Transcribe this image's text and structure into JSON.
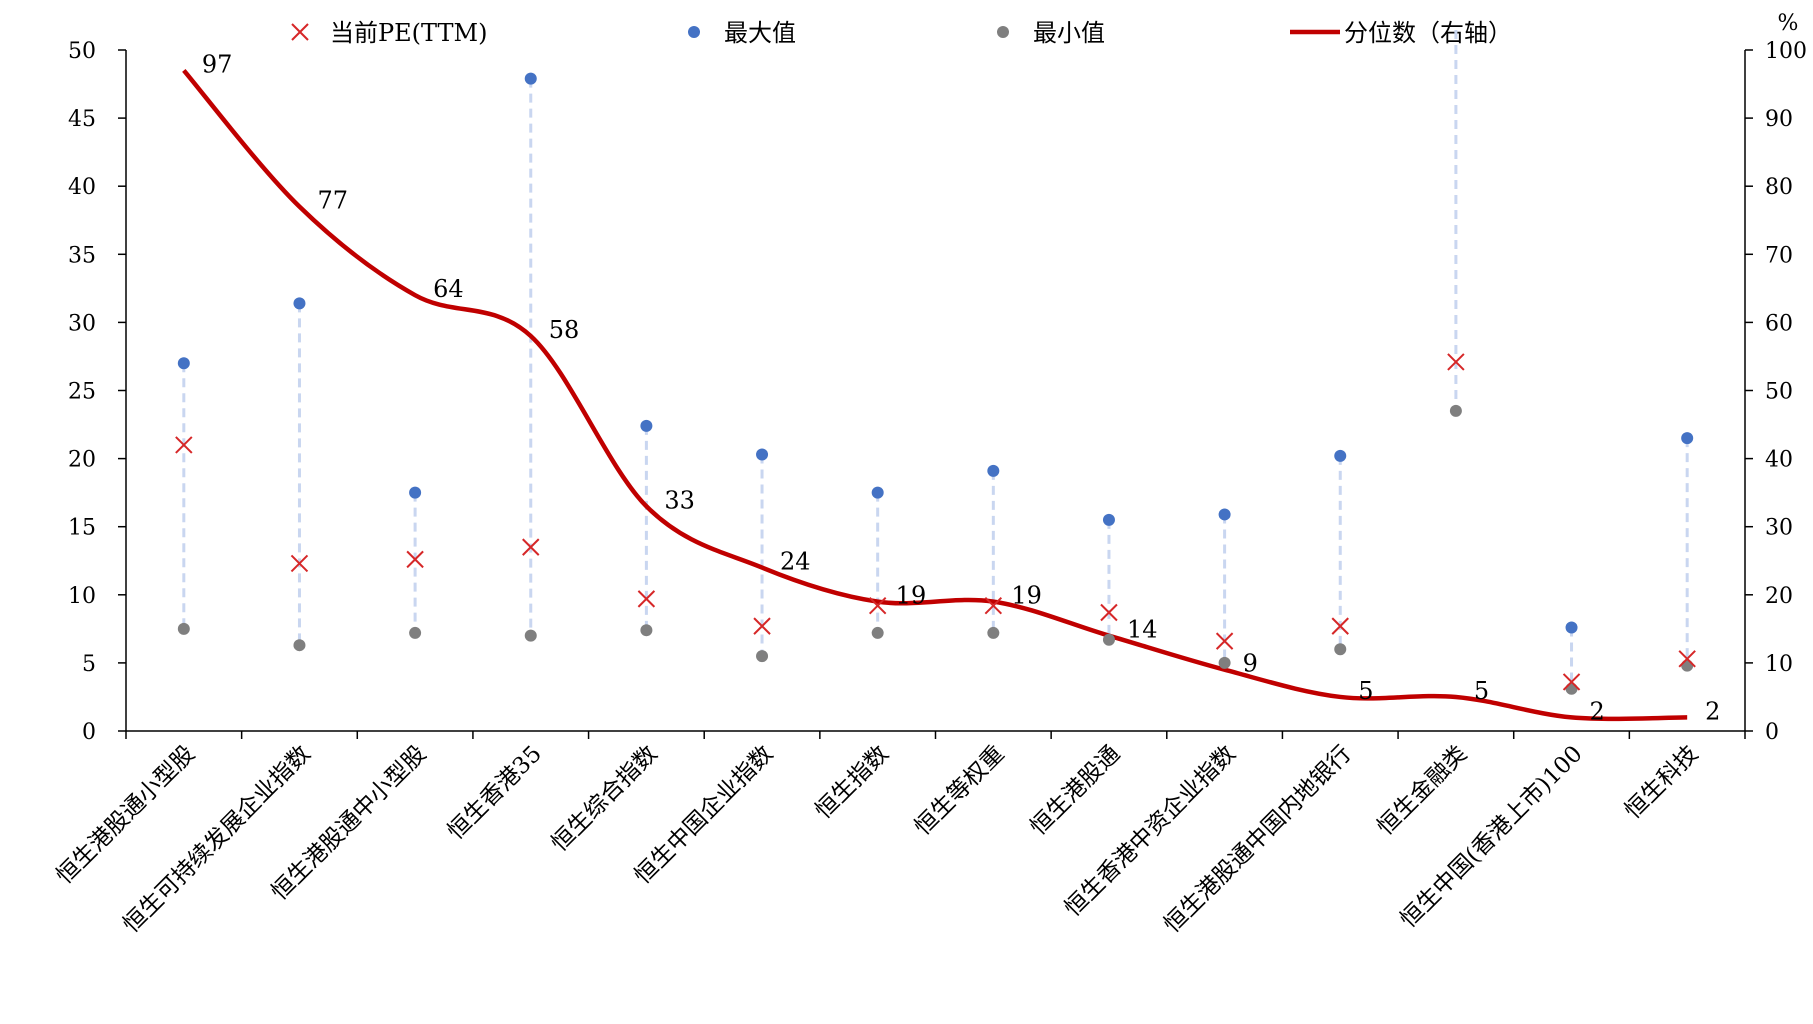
{
  "chart_data": {
    "type": "line",
    "legend": {
      "position": "top",
      "entries": [
        "当前PE(TTM)",
        "最大值",
        "最小值",
        "分位数（右轴）"
      ]
    },
    "ylabel_right": "%",
    "ylim_left": [
      0,
      50
    ],
    "ylim_right": [
      0,
      100
    ],
    "yticks_left": [
      0,
      5,
      10,
      15,
      20,
      25,
      30,
      35,
      40,
      45,
      50
    ],
    "yticks_right": [
      0,
      10,
      20,
      30,
      40,
      50,
      60,
      70,
      80,
      90,
      100
    ],
    "grid": false,
    "categories": [
      "恒生港股通小型股",
      "恒生可持续发展企业指数",
      "恒生港股通中小型股",
      "恒生香港35",
      "恒生综合指数",
      "恒生中国企业指数",
      "恒生指数",
      "恒生等权重",
      "恒生港股通",
      "恒生香港中资企业指数",
      "恒生港股通中国内地银行",
      "恒生金融类",
      "恒生中国(香港上市)100",
      "恒生科技"
    ],
    "series": [
      {
        "name": "当前PE(TTM)",
        "marker": "x",
        "color": "#d62728",
        "axis": "left",
        "values": [
          21.0,
          12.3,
          12.6,
          13.5,
          9.7,
          7.7,
          9.2,
          9.2,
          8.7,
          6.6,
          7.7,
          27.1,
          3.6,
          5.3
        ]
      },
      {
        "name": "最大值",
        "marker": "dot",
        "color": "#4472c4",
        "axis": "left",
        "values": [
          27.0,
          31.4,
          17.5,
          47.9,
          22.4,
          20.3,
          17.5,
          19.1,
          15.5,
          15.9,
          20.2,
          52.0,
          7.6,
          21.5
        ]
      },
      {
        "name": "最小值",
        "marker": "dot",
        "color": "#7f7f7f",
        "axis": "left",
        "values": [
          7.5,
          6.3,
          7.2,
          7.0,
          7.4,
          5.5,
          7.2,
          7.2,
          6.7,
          5.0,
          6.0,
          23.5,
          3.1,
          4.8
        ]
      },
      {
        "name": "分位数（右轴）",
        "type": "line",
        "color": "#c00000",
        "axis": "right",
        "values": [
          97,
          77,
          64,
          58,
          33,
          24,
          19,
          19,
          14,
          9,
          5,
          5,
          2,
          2
        ],
        "labels": [
          "97",
          "77",
          "64",
          "58",
          "33",
          "24",
          "19",
          "19",
          "14",
          "9",
          "5",
          "5",
          "2",
          "2"
        ]
      }
    ]
  }
}
